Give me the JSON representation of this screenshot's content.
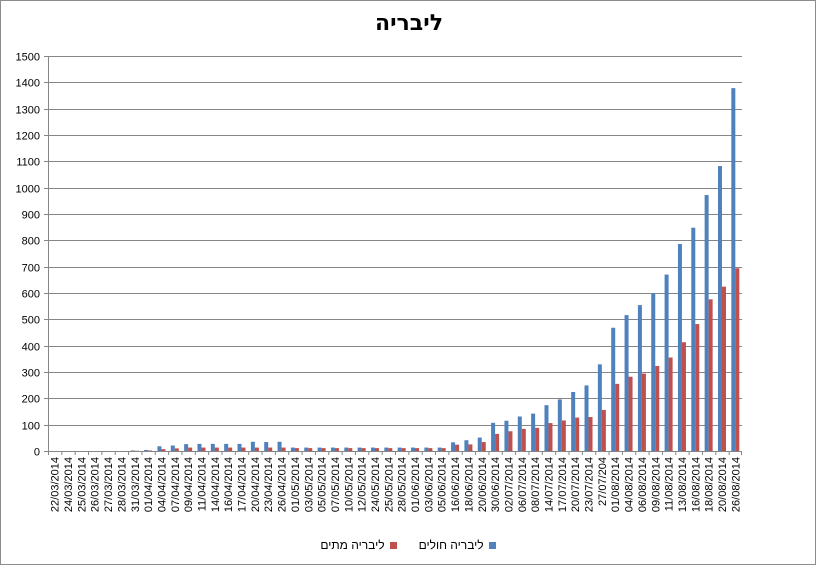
{
  "chart_data": {
    "type": "bar",
    "title": "ליבריה",
    "ylim": [
      0,
      1500
    ],
    "yticks": [
      0,
      100,
      200,
      300,
      400,
      500,
      600,
      700,
      800,
      900,
      1000,
      1100,
      1200,
      1300,
      1400,
      1500
    ],
    "grid": "horizontal",
    "legend_position": "bottom",
    "categories": [
      "22/03/2014",
      "24/03/2014",
      "25/03/2014",
      "26/03/2014",
      "27/03/2014",
      "28/03/2014",
      "31/03/2014",
      "01/04/2014",
      "04/04/2014",
      "07/04/2014",
      "09/04/2014",
      "11/04/2014",
      "14/04/2014",
      "16/04/2014",
      "17/04/2014",
      "20/04/2014",
      "23/04/2014",
      "26/04/2014",
      "01/05/2014",
      "03/05/2014",
      "05/05/2014",
      "07/05/2014",
      "10/05/2014",
      "12/05/2014",
      "24/05/2014",
      "25/05/2014",
      "28/05/2014",
      "01/06/2014",
      "03/06/2014",
      "05/06/2014",
      "16/06/2014",
      "18/06/2014",
      "20/06/2014",
      "30/06/2014",
      "02/07/2014",
      "06/07/2014",
      "08/07/2014",
      "14/07/2014",
      "17/07/2014",
      "20/07/2014",
      "23/07/2014",
      "27/07/204",
      "01/08/2014",
      "04/08/2014",
      "06/08/2014",
      "09/08/2014",
      "11/08/2014",
      "13/08/2014",
      "16/08/2014",
      "18/08/2014",
      "20/08/2014",
      "26/08/2014"
    ],
    "series": [
      {
        "name": "ליבריה חולים",
        "color": "#4f81bd",
        "values": [
          0,
          0,
          0,
          0,
          0,
          0,
          2,
          4,
          18,
          21,
          26,
          27,
          27,
          27,
          27,
          35,
          34,
          35,
          13,
          13,
          13,
          13,
          13,
          13,
          13,
          13,
          13,
          13,
          13,
          13,
          33,
          41,
          51,
          107,
          115,
          131,
          142,
          174,
          196,
          224,
          249,
          329,
          468,
          516,
          554,
          599,
          670,
          786,
          848,
          972,
          1082,
          1378
        ]
      },
      {
        "name": "ליבריה מתים",
        "color": "#c0504d",
        "values": [
          0,
          0,
          0,
          0,
          0,
          0,
          1,
          2,
          7,
          10,
          13,
          13,
          13,
          13,
          13,
          13,
          13,
          13,
          11,
          11,
          11,
          11,
          11,
          11,
          11,
          11,
          11,
          11,
          11,
          11,
          24,
          25,
          34,
          65,
          75,
          84,
          88,
          106,
          116,
          127,
          129,
          156,
          255,
          282,
          294,
          323,
          355,
          413,
          482,
          576,
          624,
          694
        ]
      }
    ]
  }
}
